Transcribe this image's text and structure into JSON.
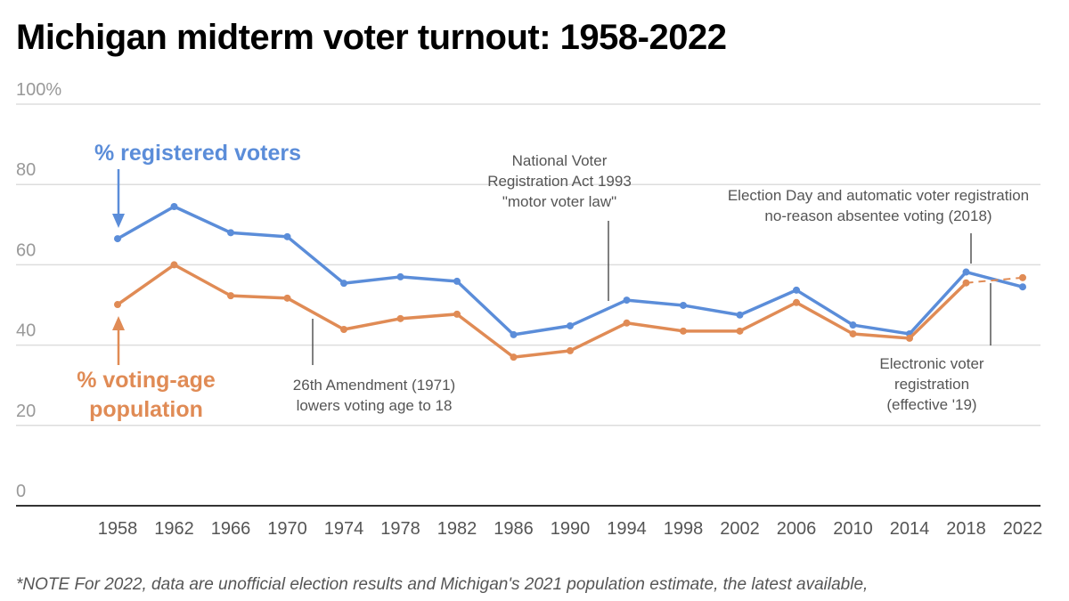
{
  "title": "Michigan midterm voter turnout: 1958-2022",
  "note": "*NOTE For 2022, data are unofficial election results and Michigan's 2021 population estimate, the latest available,",
  "chart_data": {
    "type": "line",
    "title": "Michigan midterm voter turnout: 1958-2022",
    "x": [
      "1958",
      "1962",
      "1966",
      "1970",
      "1974",
      "1978",
      "1982",
      "1986",
      "1990",
      "1994",
      "1998",
      "2002",
      "2006",
      "2010",
      "2014",
      "2018",
      "2022"
    ],
    "yticks": [
      "100%",
      "80",
      "60",
      "40",
      "20",
      "0"
    ],
    "ylim": [
      0,
      100
    ],
    "grid": true,
    "series": [
      {
        "name": "% registered voters",
        "color": "#5b8dd9",
        "values": [
          66.5,
          74.5,
          68,
          67,
          55.4,
          57,
          55.9,
          42.6,
          44.8,
          51.2,
          49.9,
          47.5,
          53.7,
          45,
          42.8,
          58.2,
          54.5
        ]
      },
      {
        "name": "% voting-age population",
        "color": "#e08b55",
        "dashed_last_segment": true,
        "values": [
          50.1,
          60,
          52.3,
          51.7,
          43.9,
          46.6,
          47.7,
          37,
          38.6,
          45.5,
          43.5,
          43.5,
          50.6,
          42.8,
          41.7,
          55.5,
          56.8
        ]
      }
    ],
    "series_labels": {
      "registered": "% registered voters",
      "vap_line1": "% voting-age",
      "vap_line2": "population"
    },
    "annotations": {
      "amend": [
        "26th Amendment (1971)",
        "lowers voting age to 18"
      ],
      "nvra": [
        "National Voter",
        "Registration Act 1993",
        "\"motor voter law\""
      ],
      "eday": [
        "Election Day and automatic voter registration",
        "no-reason absentee voting (2018)"
      ],
      "evr": [
        "Electronic voter",
        "registration",
        "(effective '19)"
      ]
    }
  }
}
